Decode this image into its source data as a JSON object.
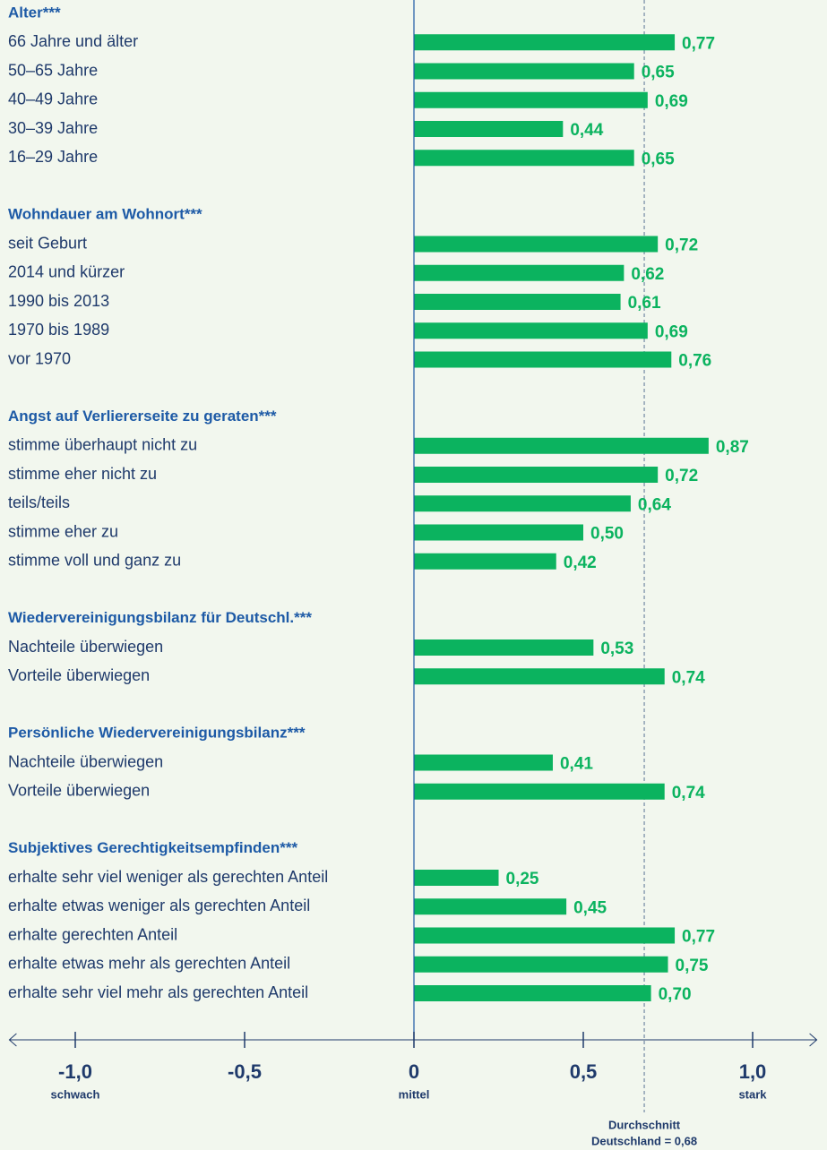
{
  "chart_data": {
    "type": "hbar",
    "color": "#0bb35f",
    "groups": [
      {
        "title": "Alter***",
        "categories": [
          "66 Jahre und älter",
          "50–65 Jahre",
          "40–49 Jahre",
          "30–39 Jahre",
          "16–29 Jahre"
        ],
        "values": [
          0.77,
          0.65,
          0.69,
          0.44,
          0.65
        ],
        "value_labels": [
          "0,77",
          "0,65",
          "0,69",
          "0,44",
          "0,65"
        ]
      },
      {
        "title": "Wohndauer am Wohnort***",
        "categories": [
          "seit Geburt",
          "2014 und kürzer",
          "1990 bis 2013",
          "1970 bis 1989",
          "vor 1970"
        ],
        "values": [
          0.72,
          0.62,
          0.61,
          0.69,
          0.76
        ],
        "value_labels": [
          "0,72",
          "0,62",
          "0,61",
          "0,69",
          "0,76"
        ]
      },
      {
        "title": "Angst auf Verliererseite zu geraten***",
        "categories": [
          "stimme überhaupt nicht zu",
          "stimme eher nicht zu",
          "teils/teils",
          "stimme eher zu",
          "stimme voll und ganz zu"
        ],
        "values": [
          0.87,
          0.72,
          0.64,
          0.5,
          0.42
        ],
        "value_labels": [
          "0,87",
          "0,72",
          "0,64",
          "0,50",
          "0,42"
        ]
      },
      {
        "title": "Wiedervereinigungsbilanz für Deutschl.***",
        "categories": [
          "Nachteile überwiegen",
          "Vorteile überwiegen"
        ],
        "values": [
          0.53,
          0.74
        ],
        "value_labels": [
          "0,53",
          "0,74"
        ]
      },
      {
        "title": "Persönliche Wiedervereinigungsbilanz***",
        "categories": [
          "Nachteile überwiegen",
          "Vorteile überwiegen"
        ],
        "values": [
          0.41,
          0.74
        ],
        "value_labels": [
          "0,41",
          "0,74"
        ]
      },
      {
        "title": "Subjektives Gerechtigkeitsempfinden***",
        "categories": [
          "erhalte sehr viel weniger als gerechten Anteil",
          "erhalte etwas weniger als gerechten Anteil",
          "erhalte gerechten Anteil",
          "erhalte etwas mehr als gerechten Anteil",
          "erhalte sehr viel mehr als gerechten Anteil"
        ],
        "values": [
          0.25,
          0.45,
          0.77,
          0.75,
          0.7
        ],
        "value_labels": [
          "0,25",
          "0,45",
          "0,77",
          "0,75",
          "0,70"
        ]
      }
    ],
    "xlim": [
      -1.2,
      1.2
    ],
    "xticks": [
      {
        "value": -1,
        "label": "-1,0"
      },
      {
        "value": -0.5,
        "label": "-0,5"
      },
      0,
      {
        "value": 0.5,
        "label": "0,5"
      },
      {
        "value": 1,
        "label": "1,0"
      }
    ],
    "scale_labels": [
      {
        "value": -1,
        "label": "schwach"
      },
      {
        "value": 0,
        "label": "mittel"
      },
      {
        "value": 1,
        "label": "stark"
      }
    ],
    "reference": {
      "value": 0.68,
      "label_lines": [
        "Durchschnitt",
        "Deutschland = 0,68"
      ]
    }
  }
}
